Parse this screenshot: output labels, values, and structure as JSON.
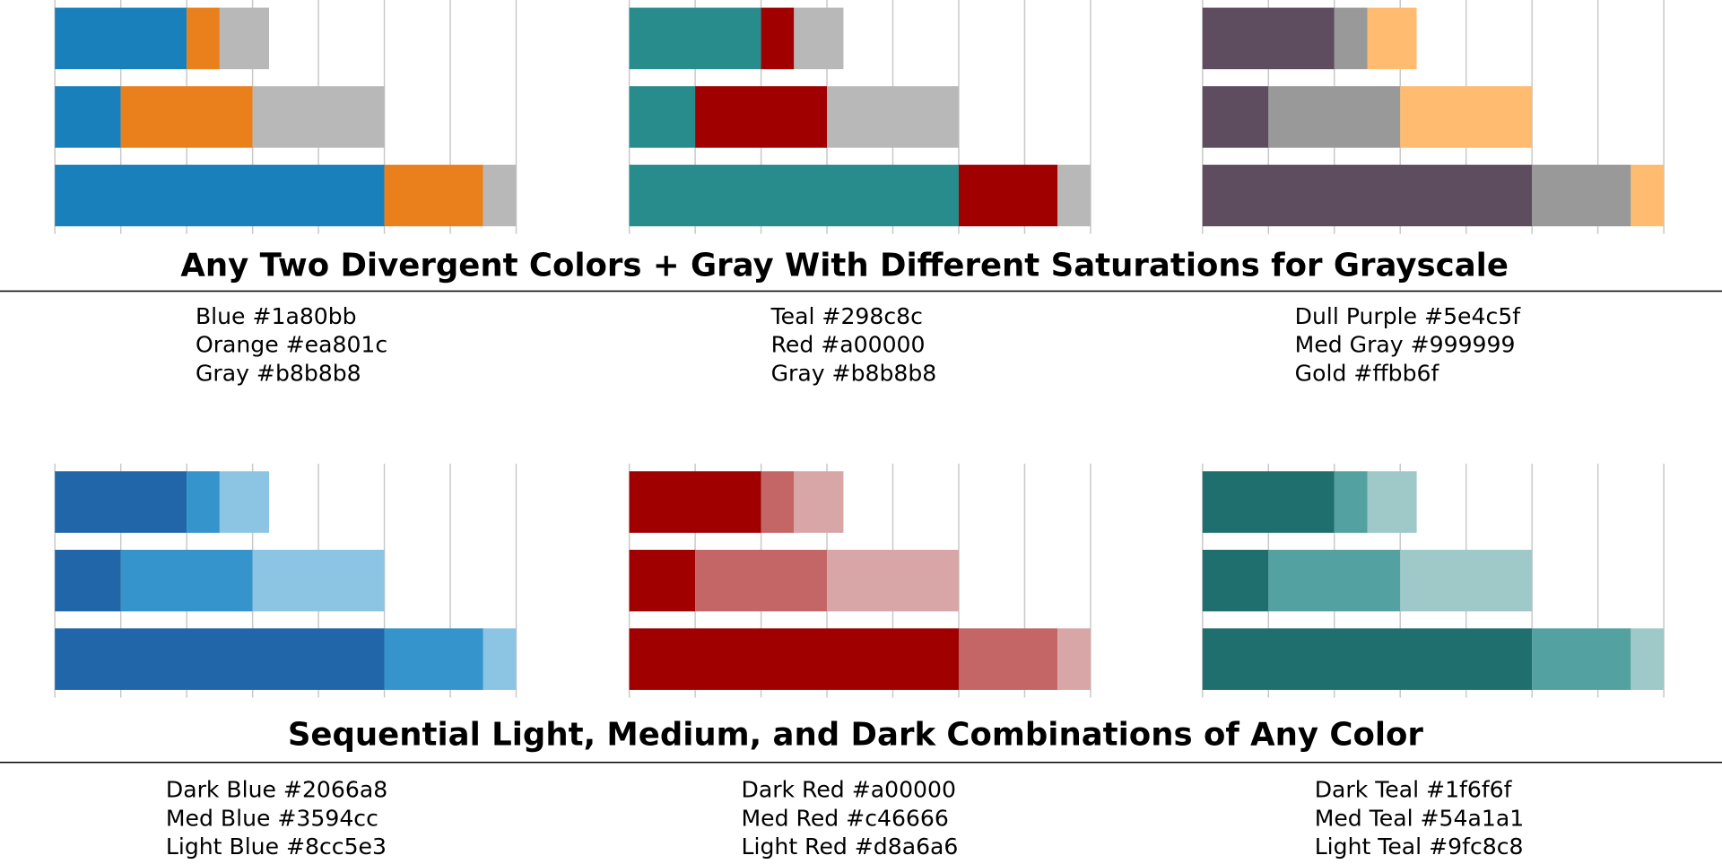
{
  "sections": [
    {
      "title": "Any Two Divergent Colors + Gray With Different Saturations for Grayscale"
    },
    {
      "title": "Sequential Light, Medium, and Dark Combinations of Any Color"
    }
  ],
  "chart_data": [
    {
      "type": "bar",
      "orientation": "horizontal",
      "stacked": true,
      "categories": [
        null,
        null,
        null
      ],
      "xlim": [
        0,
        7
      ],
      "xticks": [
        0,
        1,
        2,
        3,
        4,
        5,
        6,
        7
      ],
      "grid": true,
      "series": [
        {
          "name": "Blue #1a80bb",
          "color": "#1a80bb",
          "values": [
            2,
            1,
            5
          ]
        },
        {
          "name": "Orange #ea801c",
          "color": "#ea801c",
          "values": [
            0.5,
            2,
            1.5
          ]
        },
        {
          "name": "Gray #b8b8b8",
          "color": "#b8b8b8",
          "values": [
            0.75,
            2,
            0.5
          ]
        }
      ]
    },
    {
      "type": "bar",
      "orientation": "horizontal",
      "stacked": true,
      "categories": [
        null,
        null,
        null
      ],
      "xlim": [
        0,
        7
      ],
      "xticks": [
        0,
        1,
        2,
        3,
        4,
        5,
        6,
        7
      ],
      "grid": true,
      "series": [
        {
          "name": "Teal #298c8c",
          "color": "#298c8c",
          "values": [
            2,
            1,
            5
          ]
        },
        {
          "name": "Red #a00000",
          "color": "#a00000",
          "values": [
            0.5,
            2,
            1.5
          ]
        },
        {
          "name": "Gray #b8b8b8",
          "color": "#b8b8b8",
          "values": [
            0.75,
            2,
            0.5
          ]
        }
      ]
    },
    {
      "type": "bar",
      "orientation": "horizontal",
      "stacked": true,
      "categories": [
        null,
        null,
        null
      ],
      "xlim": [
        0,
        7
      ],
      "xticks": [
        0,
        1,
        2,
        3,
        4,
        5,
        6,
        7
      ],
      "grid": true,
      "series": [
        {
          "name": "Dull Purple #5e4c5f",
          "color": "#5e4c5f",
          "values": [
            2,
            1,
            5
          ]
        },
        {
          "name": "Med Gray #999999",
          "color": "#999999",
          "values": [
            0.5,
            2,
            1.5
          ]
        },
        {
          "name": "Gold #ffbb6f",
          "color": "#ffbb6f",
          "values": [
            0.75,
            2,
            0.5
          ]
        }
      ]
    },
    {
      "type": "bar",
      "orientation": "horizontal",
      "stacked": true,
      "categories": [
        null,
        null,
        null
      ],
      "xlim": [
        0,
        7
      ],
      "xticks": [
        0,
        1,
        2,
        3,
        4,
        5,
        6,
        7
      ],
      "grid": true,
      "series": [
        {
          "name": "Dark Blue #2066a8",
          "color": "#2066a8",
          "values": [
            2,
            1,
            5
          ]
        },
        {
          "name": "Med Blue #3594cc",
          "color": "#3594cc",
          "values": [
            0.5,
            2,
            1.5
          ]
        },
        {
          "name": "Light Blue #8cc5e3",
          "color": "#8cc5e3",
          "values": [
            0.75,
            2,
            0.5
          ]
        }
      ]
    },
    {
      "type": "bar",
      "orientation": "horizontal",
      "stacked": true,
      "categories": [
        null,
        null,
        null
      ],
      "xlim": [
        0,
        7
      ],
      "xticks": [
        0,
        1,
        2,
        3,
        4,
        5,
        6,
        7
      ],
      "grid": true,
      "series": [
        {
          "name": "Dark Red #a00000",
          "color": "#a00000",
          "values": [
            2,
            1,
            5
          ]
        },
        {
          "name": "Med Red #c46666",
          "color": "#c46666",
          "values": [
            0.5,
            2,
            1.5
          ]
        },
        {
          "name": "Light Red #d8a6a6",
          "color": "#d8a6a6",
          "values": [
            0.75,
            2,
            0.5
          ]
        }
      ]
    },
    {
      "type": "bar",
      "orientation": "horizontal",
      "stacked": true,
      "categories": [
        null,
        null,
        null
      ],
      "xlim": [
        0,
        7
      ],
      "xticks": [
        0,
        1,
        2,
        3,
        4,
        5,
        6,
        7
      ],
      "grid": true,
      "series": [
        {
          "name": "Dark Teal #1f6f6f",
          "color": "#1f6f6f",
          "values": [
            2,
            1,
            5
          ]
        },
        {
          "name": "Med Teal #54a1a1",
          "color": "#54a1a1",
          "values": [
            0.5,
            2,
            1.5
          ]
        },
        {
          "name": "Light Teal #9fc8c8",
          "color": "#9fc8c8",
          "values": [
            0.75,
            2,
            0.5
          ]
        }
      ]
    }
  ]
}
